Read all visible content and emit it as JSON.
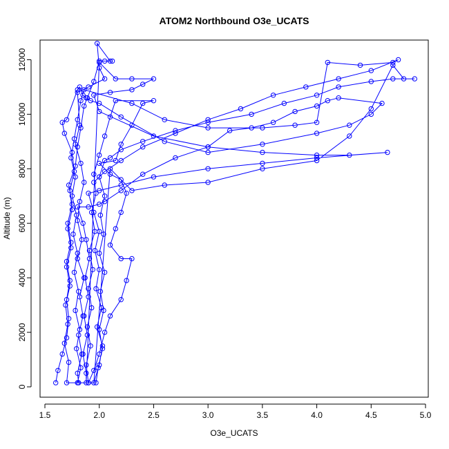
{
  "chart_data": {
    "type": "line",
    "title": "ATOM2 Northbound O3e_UCATS",
    "xlabel": "O3e_UCATS",
    "ylabel": "Altitude (m)",
    "xlim": [
      1.5,
      5.0
    ],
    "ylim": [
      0,
      13000
    ],
    "x_ticks": [
      "1.5",
      "2.0",
      "2.5",
      "3.0",
      "3.5",
      "4.0",
      "4.5",
      "5.0"
    ],
    "y_ticks": [
      "0",
      "2000",
      "4000",
      "6000",
      "8000",
      "10000",
      "12000"
    ],
    "markers": "open-circle",
    "grid": false,
    "legend": "none",
    "series_color": "#0000ff",
    "series": [
      {
        "values": [
          [
            1.6,
            150
          ],
          [
            1.62,
            600
          ],
          [
            1.66,
            1200
          ],
          [
            1.7,
            1800
          ],
          [
            1.72,
            2500
          ],
          [
            1.7,
            3200
          ],
          [
            1.73,
            3900
          ],
          [
            1.7,
            4600
          ],
          [
            1.74,
            5300
          ],
          [
            1.71,
            6000
          ],
          [
            1.75,
            6700
          ],
          [
            1.72,
            7400
          ],
          [
            1.78,
            8100
          ],
          [
            1.8,
            8800
          ],
          [
            1.83,
            9500
          ],
          [
            1.86,
            10300
          ],
          [
            1.89,
            10600
          ],
          [
            1.95,
            11200
          ],
          [
            2.0,
            11950
          ],
          [
            2.05,
            11950
          ],
          [
            2.12,
            11950
          ],
          [
            2.1,
            11950
          ],
          [
            1.98,
            12600
          ],
          [
            2.0,
            11700
          ],
          [
            2.05,
            11300
          ],
          [
            1.9,
            11000
          ],
          [
            1.8,
            10800
          ],
          [
            1.82,
            9600
          ],
          [
            1.78,
            8900
          ],
          [
            1.83,
            8200
          ],
          [
            1.86,
            7500
          ],
          [
            1.82,
            6800
          ],
          [
            1.8,
            6100
          ],
          [
            1.84,
            5400
          ],
          [
            1.8,
            4700
          ],
          [
            1.86,
            4000
          ],
          [
            1.82,
            3300
          ],
          [
            1.85,
            2600
          ],
          [
            1.81,
            1900
          ],
          [
            1.84,
            1200
          ],
          [
            1.8,
            500
          ],
          [
            1.81,
            150
          ],
          [
            1.9,
            150
          ],
          [
            1.88,
            800
          ],
          [
            1.92,
            1500
          ],
          [
            1.89,
            2200
          ],
          [
            1.93,
            2900
          ],
          [
            1.9,
            3600
          ],
          [
            1.94,
            4300
          ],
          [
            1.91,
            5000
          ],
          [
            1.96,
            5700
          ],
          [
            1.93,
            6400
          ],
          [
            1.97,
            7100
          ],
          [
            1.95,
            7800
          ],
          [
            2.0,
            8500
          ],
          [
            2.05,
            9200
          ],
          [
            2.1,
            9900
          ],
          [
            2.15,
            10500
          ],
          [
            2.5,
            10500
          ],
          [
            2.4,
            10400
          ],
          [
            2.3,
            9600
          ],
          [
            2.2,
            8900
          ],
          [
            2.15,
            8300
          ],
          [
            2.0,
            8200
          ],
          [
            2.1,
            7800
          ],
          [
            2.2,
            7600
          ],
          [
            2.25,
            7100
          ],
          [
            2.2,
            6400
          ],
          [
            2.15,
            5800
          ],
          [
            2.1,
            5200
          ],
          [
            2.2,
            4700
          ],
          [
            2.3,
            4700
          ],
          [
            2.25,
            3900
          ],
          [
            2.2,
            3200
          ],
          [
            2.1,
            2600
          ],
          [
            2.05,
            2000
          ],
          [
            2.0,
            1200
          ],
          [
            1.95,
            600
          ],
          [
            1.9,
            150
          ],
          [
            1.7,
            150
          ],
          [
            1.72,
            900
          ],
          [
            1.68,
            1600
          ],
          [
            1.71,
            2300
          ],
          [
            1.69,
            3000
          ],
          [
            1.73,
            3700
          ],
          [
            1.7,
            4400
          ],
          [
            1.74,
            5100
          ],
          [
            1.71,
            5800
          ],
          [
            1.75,
            6500
          ],
          [
            1.73,
            7200
          ],
          [
            1.77,
            7900
          ],
          [
            1.75,
            8600
          ],
          [
            1.68,
            9300
          ],
          [
            1.66,
            9700
          ],
          [
            1.7,
            9800
          ],
          [
            1.8,
            10900
          ],
          [
            1.82,
            11000
          ],
          [
            1.85,
            10700
          ],
          [
            1.88,
            10600
          ],
          [
            1.92,
            10500
          ],
          [
            2.0,
            10400
          ],
          [
            2.2,
            9900
          ],
          [
            2.6,
            9000
          ],
          [
            3.0,
            8600
          ],
          [
            3.5,
            8900
          ],
          [
            4.0,
            9300
          ],
          [
            4.3,
            9600
          ],
          [
            4.5,
            10000
          ],
          [
            4.6,
            10400
          ],
          [
            4.2,
            10600
          ],
          [
            4.1,
            10500
          ],
          [
            4.0,
            10300
          ],
          [
            3.8,
            10100
          ],
          [
            3.6,
            9700
          ],
          [
            3.4,
            9500
          ],
          [
            3.2,
            9400
          ],
          [
            3.0,
            8800
          ],
          [
            2.7,
            8400
          ],
          [
            2.4,
            7800
          ],
          [
            2.2,
            7200
          ],
          [
            2.05,
            6800
          ],
          [
            2.0,
            6700
          ],
          [
            1.9,
            6600
          ],
          [
            1.8,
            6600
          ],
          [
            1.85,
            6000
          ],
          [
            1.88,
            5400
          ],
          [
            1.91,
            4700
          ],
          [
            1.87,
            4000
          ],
          [
            1.9,
            3300
          ],
          [
            1.86,
            2600
          ],
          [
            1.89,
            1900
          ],
          [
            1.85,
            1200
          ],
          [
            1.88,
            500
          ],
          [
            1.88,
            150
          ],
          [
            2.0,
            11900
          ],
          [
            2.15,
            11300
          ],
          [
            2.3,
            11300
          ],
          [
            2.5,
            11300
          ],
          [
            2.4,
            11100
          ],
          [
            2.3,
            10900
          ],
          [
            2.1,
            10800
          ],
          [
            1.95,
            10700
          ],
          [
            2.0,
            10100
          ],
          [
            2.5,
            9200
          ],
          [
            3.0,
            8800
          ],
          [
            3.5,
            8600
          ],
          [
            4.0,
            8500
          ],
          [
            4.3,
            8500
          ],
          [
            4.65,
            8600
          ],
          [
            4.0,
            8400
          ],
          [
            3.5,
            8200
          ],
          [
            3.0,
            8000
          ],
          [
            2.5,
            7700
          ],
          [
            2.2,
            7400
          ],
          [
            2.0,
            7200
          ],
          [
            1.9,
            7100
          ],
          [
            1.95,
            6400
          ],
          [
            2.0,
            5700
          ],
          [
            1.96,
            5000
          ],
          [
            2.0,
            4300
          ],
          [
            1.97,
            3600
          ],
          [
            2.02,
            2900
          ],
          [
            1.98,
            2200
          ],
          [
            2.03,
            1500
          ],
          [
            2.0,
            800
          ],
          [
            1.95,
            150
          ],
          [
            2.1,
            8000
          ],
          [
            2.3,
            7200
          ],
          [
            2.6,
            7400
          ],
          [
            3.0,
            7500
          ],
          [
            3.5,
            8000
          ],
          [
            4.0,
            8300
          ],
          [
            4.3,
            9200
          ],
          [
            4.5,
            10200
          ],
          [
            4.7,
            11800
          ],
          [
            4.8,
            11300
          ],
          [
            4.9,
            11300
          ],
          [
            4.7,
            11300
          ],
          [
            4.5,
            11200
          ],
          [
            4.2,
            11000
          ],
          [
            4.0,
            10700
          ],
          [
            3.7,
            10400
          ],
          [
            3.4,
            10000
          ],
          [
            3.0,
            9700
          ],
          [
            2.7,
            9400
          ],
          [
            2.4,
            9000
          ],
          [
            2.2,
            8700
          ],
          [
            2.1,
            8400
          ],
          [
            2.05,
            8300
          ],
          [
            2.0,
            7700
          ],
          [
            2.05,
            7000
          ],
          [
            2.01,
            6300
          ],
          [
            2.04,
            5600
          ],
          [
            2.0,
            4900
          ],
          [
            2.05,
            4200
          ],
          [
            2.01,
            3500
          ],
          [
            2.04,
            2800
          ],
          [
            2.0,
            2100
          ],
          [
            2.03,
            1400
          ],
          [
            1.99,
            700
          ],
          [
            1.97,
            150
          ],
          [
            1.8,
            150
          ],
          [
            1.83,
            700
          ],
          [
            1.79,
            1400
          ],
          [
            1.82,
            2100
          ],
          [
            1.78,
            2800
          ],
          [
            1.81,
            3500
          ],
          [
            1.77,
            4200
          ],
          [
            1.8,
            4900
          ],
          [
            1.76,
            5600
          ],
          [
            1.79,
            6300
          ],
          [
            1.75,
            7000
          ],
          [
            1.78,
            7700
          ],
          [
            1.74,
            8400
          ],
          [
            1.77,
            9100
          ],
          [
            1.8,
            9800
          ],
          [
            1.83,
            10500
          ],
          [
            1.86,
            10900
          ],
          [
            2.3,
            10400
          ],
          [
            2.6,
            9800
          ],
          [
            3.0,
            9500
          ],
          [
            3.5,
            9500
          ],
          [
            3.8,
            9600
          ],
          [
            4.0,
            9700
          ],
          [
            4.1,
            11900
          ],
          [
            4.4,
            11800
          ],
          [
            4.7,
            11900
          ],
          [
            4.75,
            12000
          ],
          [
            4.5,
            11600
          ],
          [
            4.2,
            11300
          ],
          [
            3.9,
            11000
          ],
          [
            3.6,
            10700
          ],
          [
            3.3,
            10200
          ],
          [
            3.0,
            9800
          ],
          [
            2.7,
            9300
          ],
          [
            2.4,
            8800
          ],
          [
            2.2,
            8300
          ],
          [
            2.05,
            7900
          ],
          [
            1.95,
            7500
          ]
        ]
      }
    ]
  }
}
